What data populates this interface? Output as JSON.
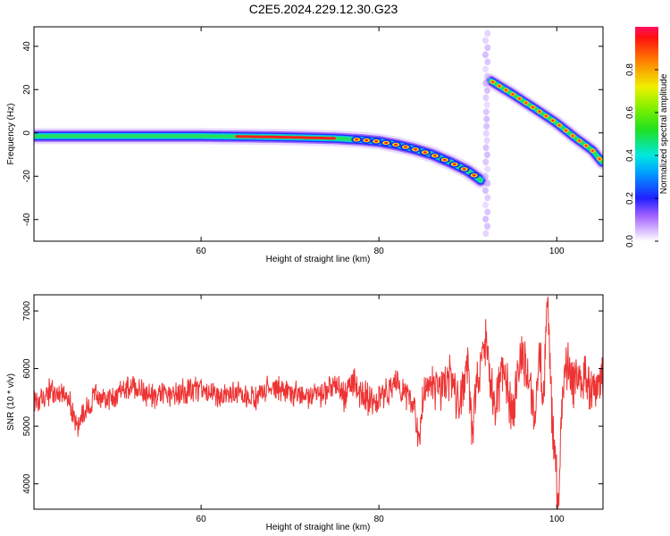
{
  "title": "C2E5.2024.229.12.30.G23",
  "colors": {
    "snr_line": "#ee3333",
    "frame": "#000000",
    "background": "#ffffff"
  },
  "chart_data": [
    {
      "type": "heatmap",
      "title": "C2E5.2024.229.12.30.G23",
      "xlabel": "Height of straight line (km)",
      "ylabel": "Frequency (Hz)",
      "xlim": [
        41.2,
        105.2
      ],
      "ylim": [
        -50,
        49
      ],
      "xticks": [
        60,
        80,
        100
      ],
      "yticks": [
        -40,
        -20,
        0,
        20,
        40
      ],
      "grid": false,
      "colormap": "rainbow (violet-blue-cyan-green-yellow-red)",
      "colorbar": {
        "label": "Normalized spectral amplitude",
        "range": [
          0.0,
          1.0
        ],
        "ticks": [
          0.0,
          0.2,
          0.4,
          0.6,
          0.8
        ]
      },
      "traces": [
        {
          "x": [
            41.2,
            45,
            50,
            55,
            60,
            65,
            70,
            75,
            78,
            80,
            82,
            84,
            86,
            88,
            90,
            91.5
          ],
          "y": [
            -1.5,
            -1.5,
            -1.5,
            -1.5,
            -1.5,
            -1.7,
            -2,
            -2.5,
            -3.2,
            -4,
            -5.5,
            -7.5,
            -10,
            -13.5,
            -17.5,
            -22
          ]
        },
        {
          "x": [
            92.6,
            95,
            98,
            100,
            102,
            104,
            105.2
          ],
          "y": [
            24,
            18,
            10,
            4.5,
            -2,
            -8,
            -14
          ]
        }
      ],
      "gap_x": 92.1
    },
    {
      "type": "line",
      "xlabel": "Height of straight line (km)",
      "ylabel": "SNR (10 * v/v)",
      "xlim": [
        41.2,
        105.2
      ],
      "ylim": [
        3560,
        7280
      ],
      "xticks": [
        60,
        80,
        100
      ],
      "yticks": [
        4000,
        5000,
        6000,
        7000
      ],
      "grid": false,
      "series": [
        {
          "x": [
            41.2,
            43,
            45,
            46,
            48,
            50,
            52,
            55,
            58,
            60,
            62,
            64,
            66,
            68,
            70,
            72,
            74,
            75,
            76,
            77,
            78,
            80,
            82,
            83,
            84,
            84.5,
            85,
            86,
            87,
            88,
            89,
            90,
            90.5,
            91,
            92,
            93,
            94,
            95,
            96,
            97,
            97.5,
            98,
            98.5,
            99,
            99.5,
            100,
            100.2,
            100.6,
            101,
            102,
            103,
            104,
            105.2
          ],
          "y": [
            5450,
            5600,
            5550,
            5000,
            5500,
            5450,
            5700,
            5500,
            5600,
            5650,
            5500,
            5600,
            5450,
            5700,
            5550,
            5500,
            5600,
            5750,
            5450,
            5800,
            5500,
            5400,
            5800,
            5600,
            5300,
            4650,
            5600,
            5700,
            5500,
            5900,
            5400,
            6200,
            4800,
            5800,
            6400,
            5300,
            6100,
            5200,
            6300,
            5800,
            5200,
            6400,
            5500,
            7250,
            5000,
            4100,
            3600,
            5400,
            6100,
            5700,
            5900,
            5600,
            5850
          ]
        }
      ]
    }
  ]
}
